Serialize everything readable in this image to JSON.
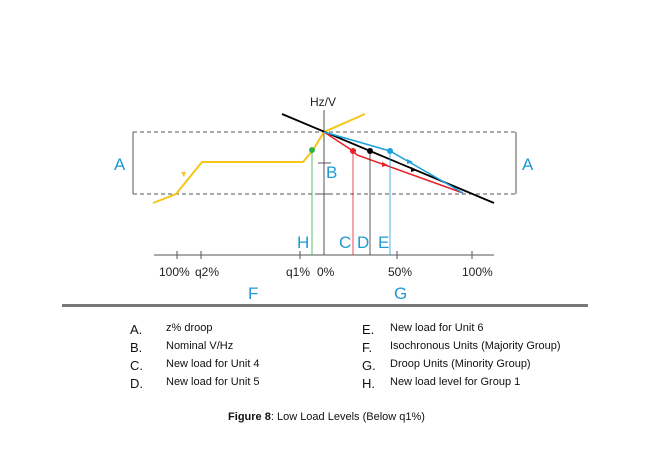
{
  "figure": {
    "axis_label": "Hz/V",
    "markers": {
      "A_left": "A",
      "A_right": "A",
      "B": "B",
      "H": "H",
      "C": "C",
      "D": "D",
      "E": "E",
      "F": "F",
      "G": "G"
    },
    "ticks": [
      "100%",
      "q2%",
      "q1%",
      "0%",
      "50%",
      "100%"
    ],
    "colors": {
      "isochronous": "#f5c518",
      "droop": "#000000",
      "unit4": "#e8202a",
      "unit6": "#1ea0dc",
      "group1": "#2db34a",
      "label": "#1e9ad6"
    }
  },
  "legend": [
    {
      "letter": "A.",
      "text": "z% droop"
    },
    {
      "letter": "B.",
      "text": "Nominal V/Hz"
    },
    {
      "letter": "C.",
      "text": "New load for Unit 4"
    },
    {
      "letter": "D.",
      "text": "New load for Unit 5"
    },
    {
      "letter": "E.",
      "text": "New load for Unit 6"
    },
    {
      "letter": "F.",
      "text": "Isochronous Units (Majority Group)"
    },
    {
      "letter": "G.",
      "text": "Droop Units (Minority Group)"
    },
    {
      "letter": "H.",
      "text": "New load level for Group 1"
    }
  ],
  "caption": {
    "bold": "Figure 8",
    "rest": ": Low Load Levels (Below q1%)"
  }
}
